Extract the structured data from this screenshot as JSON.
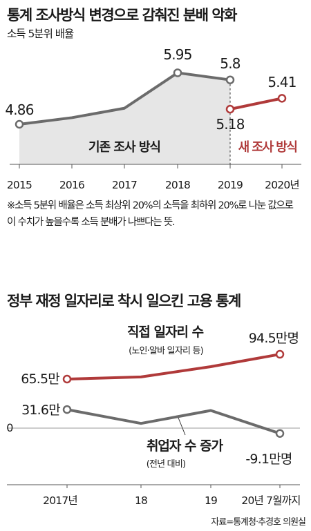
{
  "chart_data": [
    {
      "type": "line",
      "title": "통계 조사방식 변경으로 감춰진 분배 악화",
      "subtitle": "소득 5분위 배율",
      "categories": [
        "2015",
        "2016",
        "2017",
        "2018",
        "2019",
        "2020년"
      ],
      "series": [
        {
          "name": "기존 조사 방식",
          "color": "#6b6b6b",
          "x": [
            "2015",
            "2016",
            "2017",
            "2018",
            "2019"
          ],
          "values": [
            4.86,
            5.0,
            5.2,
            5.95,
            5.8
          ],
          "labels": [
            "4.86",
            "",
            "",
            "5.95",
            "5.8"
          ]
        },
        {
          "name": "새 조사 방식",
          "color": "#b03a3a",
          "x": [
            "2019",
            "2020년"
          ],
          "values": [
            5.18,
            5.41
          ],
          "labels": [
            "5.18",
            "5.41"
          ]
        }
      ],
      "note": "※소득 5분위 배율은 소득 최상위 20%의 소득을 최하위 20%로 나눈 값으로 이 수치가 높을수록 소득 분배가 나쁘다는 뜻."
    },
    {
      "type": "line",
      "title": "정부 재정 일자리로 착시 일으킨 고용 통계",
      "categories": [
        "2017년",
        "18",
        "19",
        "20년 7월까지"
      ],
      "zero_label": "0",
      "series": [
        {
          "name": "직접 일자리 수",
          "subname": "(노인·알바 일자리 등)",
          "color": "#b03a3a",
          "values": [
            65.5,
            68.0,
            80.0,
            94.5
          ],
          "labels": [
            "65.5만",
            "",
            "",
            "94.5만명"
          ]
        },
        {
          "name": "취업자 수 증가",
          "subname": "(전년 대비)",
          "color": "#6b6b6b",
          "values": [
            31.6,
            8.0,
            30.0,
            -9.1
          ],
          "labels": [
            "31.6만",
            "",
            "",
            "-9.1만명"
          ]
        }
      ],
      "source": "자료=통계청·추경호 의원실"
    }
  ]
}
